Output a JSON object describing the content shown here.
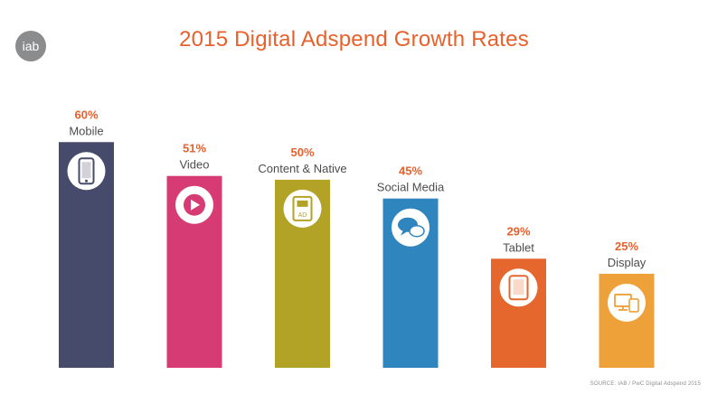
{
  "logo_text": "iab",
  "title": "2015 Digital Adspend Growth Rates",
  "source": "SOURCE: IAB / PwC Digital Adspend 2015",
  "chart_data": {
    "type": "bar",
    "title": "2015 Digital Adspend Growth Rates",
    "categories": [
      "Mobile",
      "Video",
      "Content & Native",
      "Social Media",
      "Tablet",
      "Display"
    ],
    "values": [
      60,
      51,
      50,
      45,
      29,
      25
    ],
    "value_labels": [
      "60%",
      "51%",
      "50%",
      "45%",
      "29%",
      "25%"
    ],
    "icons": [
      "smartphone-icon",
      "play-icon",
      "native-ad-icon",
      "chat-bubbles-icon",
      "tablet-icon",
      "devices-icon"
    ],
    "ad_badge": "AD",
    "colors": [
      "#464b6c",
      "#d63c73",
      "#b2a327",
      "#2f85bd",
      "#e5672d",
      "#eea039"
    ],
    "label_color": "#e8602c",
    "category_color": "#4d4d4f",
    "ylim": [
      0,
      80
    ],
    "grid": false,
    "legend": "none"
  }
}
